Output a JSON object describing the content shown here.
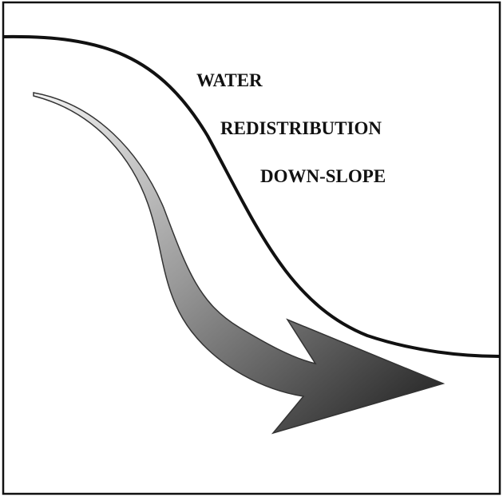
{
  "labels": [
    "WATER",
    "REDISTRIBUTION",
    "DOWN-SLOPE"
  ]
}
